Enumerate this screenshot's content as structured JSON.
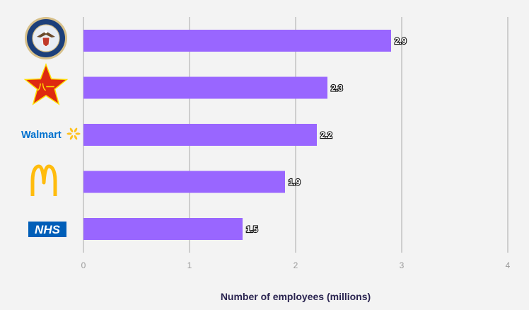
{
  "chart_data": {
    "type": "bar",
    "orientation": "horizontal",
    "categories": [
      "U.S. Department of Defense",
      "People's Liberation Army",
      "Walmart",
      "McDonald's",
      "NHS"
    ],
    "values": [
      2.9,
      2.3,
      2.2,
      1.9,
      1.5
    ],
    "value_labels": [
      "2.9",
      "2.3",
      "2.2",
      "1.9",
      "1.5"
    ],
    "xlim": [
      0,
      4
    ],
    "xticks": [
      0,
      1,
      2,
      3,
      4
    ],
    "xtick_labels": [
      "0",
      "1",
      "2",
      "3",
      "4"
    ],
    "xlabel": "Number of employees (millions)",
    "ylabel": "",
    "title": "",
    "grid": "vertical",
    "logos": [
      "dod-seal",
      "pla-star",
      "walmart",
      "mcdonalds",
      "nhs"
    ],
    "logo_text": {
      "walmart": "Walmart",
      "pla": "八一",
      "nhs": "NHS"
    }
  },
  "colors": {
    "background": "#f3f3f3",
    "bar": "#9966ff",
    "grid": "#a8a8a8",
    "tick_text": "#9a9a9a",
    "axis_title": "#2a2450",
    "walmart_blue": "#0071ce",
    "walmart_spark": "#ffc220",
    "mcd_gold": "#ffbc0d",
    "nhs_blue": "#005eb8",
    "pla_red": "#de2910",
    "pla_gold": "#ffde00",
    "dod_blue": "#1c3f7a"
  }
}
